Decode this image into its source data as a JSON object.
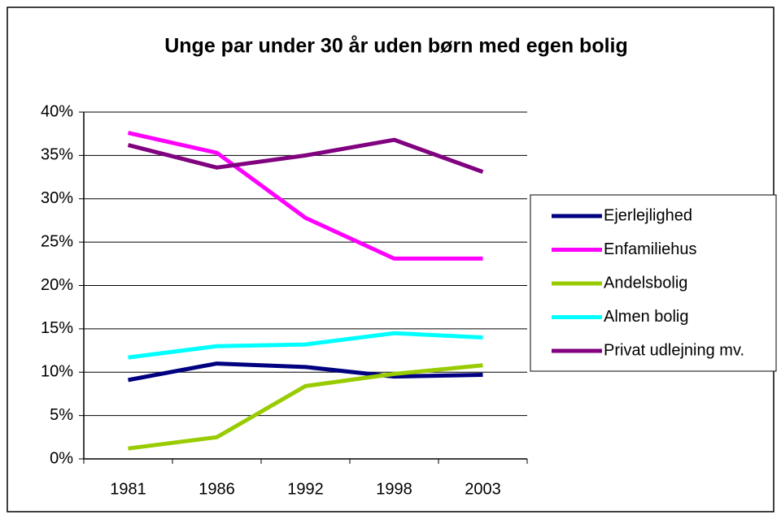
{
  "chart_data": {
    "type": "line",
    "title": "Unge par under 30 år uden børn med egen bolig",
    "categories": [
      "1981",
      "1986",
      "1992",
      "1998",
      "2003"
    ],
    "series": [
      {
        "name": "Ejerlejlighed",
        "color": "#000080",
        "values": [
          9.1,
          11.0,
          10.6,
          9.5,
          9.7
        ]
      },
      {
        "name": "Enfamiliehus",
        "color": "#ff00ff",
        "values": [
          37.6,
          35.3,
          27.8,
          23.1,
          23.1
        ]
      },
      {
        "name": "Andelsbolig",
        "color": "#99cc00",
        "values": [
          1.2,
          2.5,
          8.4,
          9.8,
          10.8
        ]
      },
      {
        "name": "Almen bolig",
        "color": "#00ffff",
        "values": [
          11.7,
          13.0,
          13.2,
          14.5,
          14.0
        ]
      },
      {
        "name": "Privat udlejning mv.",
        "color": "#800080",
        "values": [
          36.2,
          33.6,
          35.0,
          36.8,
          33.1
        ]
      }
    ],
    "ylim": [
      0,
      40
    ],
    "yticks": [
      {
        "value": 0,
        "label": "0%"
      },
      {
        "value": 5,
        "label": "5%"
      },
      {
        "value": 10,
        "label": "10%"
      },
      {
        "value": 15,
        "label": "15%"
      },
      {
        "value": 20,
        "label": "20%"
      },
      {
        "value": 25,
        "label": "25%"
      },
      {
        "value": 30,
        "label": "30%"
      },
      {
        "value": 35,
        "label": "35%"
      },
      {
        "value": 40,
        "label": "40%"
      }
    ],
    "grid": true,
    "legend": "right"
  }
}
